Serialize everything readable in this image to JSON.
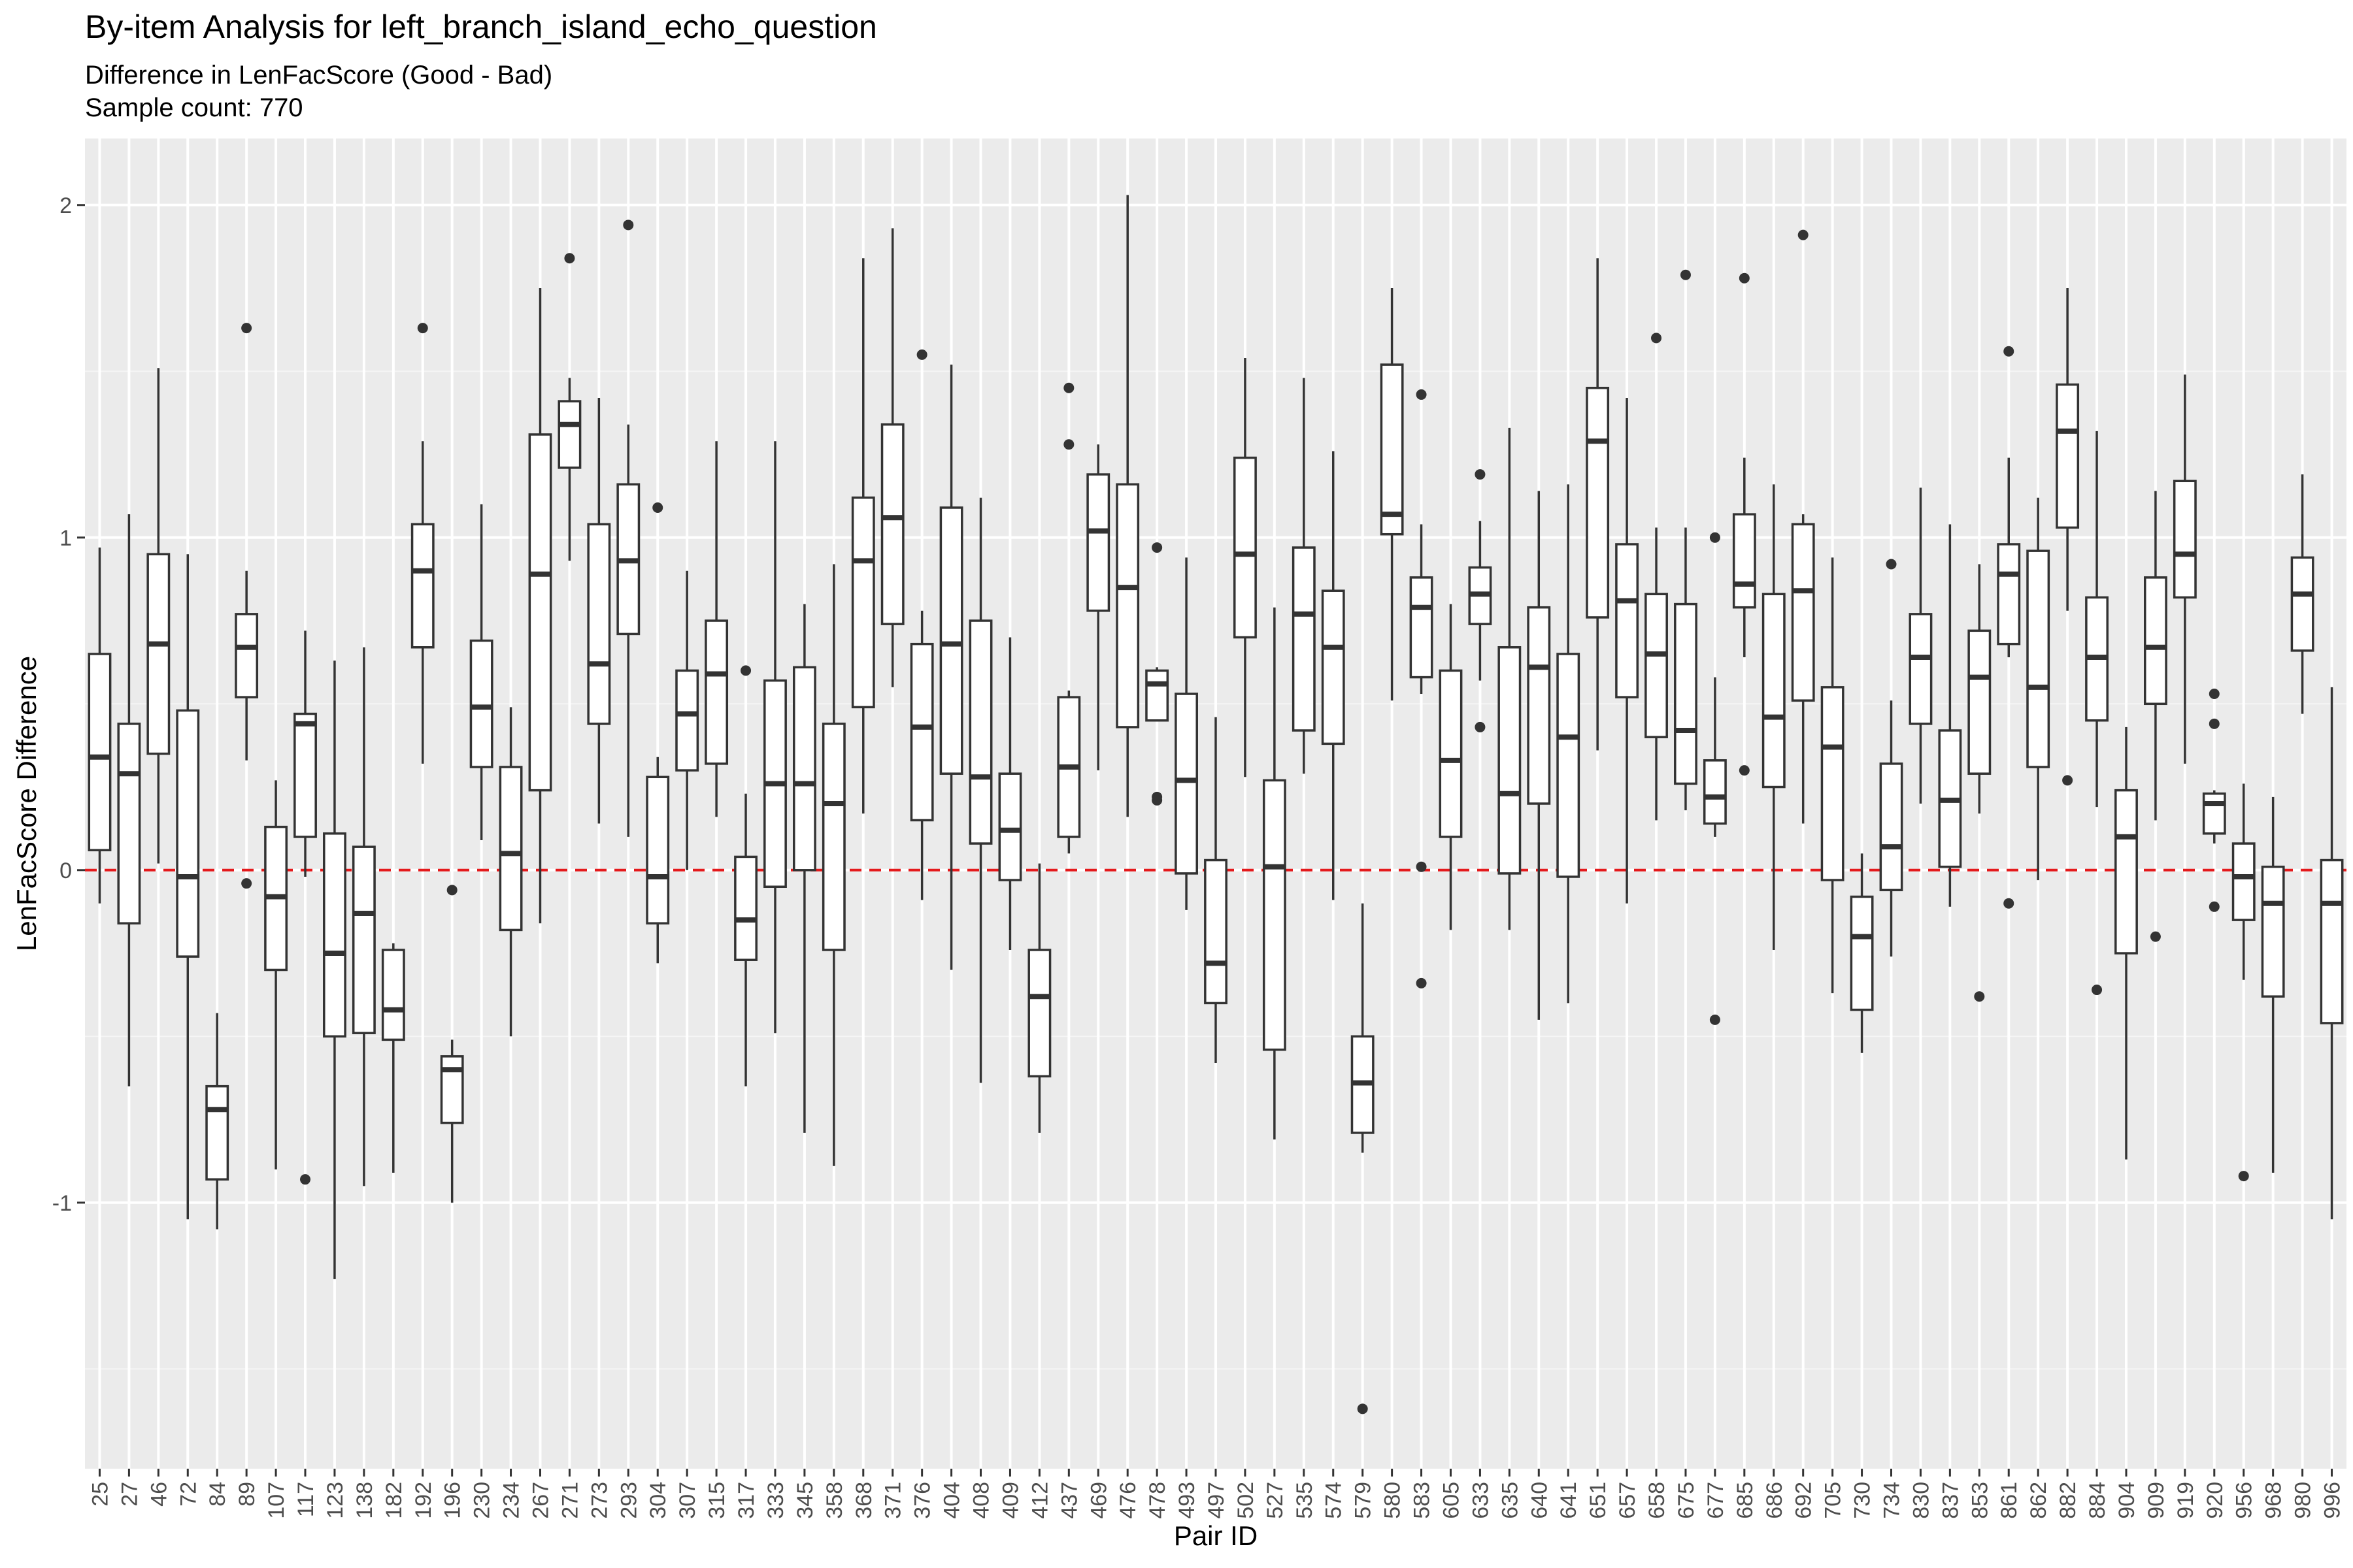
{
  "chart_data": {
    "type": "box",
    "title": "By-item Analysis for left_branch_island_echo_question",
    "subtitle": "Difference in LenFacScore (Good - Bad)",
    "caption_line": "Sample count: 770",
    "xlabel": "Pair ID",
    "ylabel": "LenFacScore Difference",
    "ylim": [
      -1.8,
      2.2
    ],
    "yticks": [
      -1,
      0,
      1,
      2
    ],
    "reference_line": {
      "y": 0,
      "style": "dashed",
      "color": "#e41a1c"
    },
    "grid": true,
    "colors": {
      "panel": "#ebebeb",
      "grid_major": "#ffffff",
      "grid_minor": "#f5f5f5",
      "box_line": "#333333",
      "box_fill": "#ffffff"
    },
    "boxes": [
      {
        "id": "25",
        "whisker_low": -0.1,
        "q1": 0.06,
        "median": 0.34,
        "q3": 0.65,
        "whisker_high": 0.97,
        "outliers": []
      },
      {
        "id": "27",
        "whisker_low": -0.65,
        "q1": -0.16,
        "median": 0.29,
        "q3": 0.44,
        "whisker_high": 1.07,
        "outliers": []
      },
      {
        "id": "46",
        "whisker_low": 0.02,
        "q1": 0.35,
        "median": 0.68,
        "q3": 0.95,
        "whisker_high": 1.51,
        "outliers": []
      },
      {
        "id": "72",
        "whisker_low": -1.05,
        "q1": -0.26,
        "median": -0.02,
        "q3": 0.48,
        "whisker_high": 0.95,
        "outliers": []
      },
      {
        "id": "84",
        "whisker_low": -1.08,
        "q1": -0.93,
        "median": -0.72,
        "q3": -0.65,
        "whisker_high": -0.43,
        "outliers": []
      },
      {
        "id": "89",
        "whisker_low": 0.33,
        "q1": 0.52,
        "median": 0.67,
        "q3": 0.77,
        "whisker_high": 0.9,
        "outliers": [
          1.63,
          -0.04
        ]
      },
      {
        "id": "107",
        "whisker_low": -0.9,
        "q1": -0.3,
        "median": -0.08,
        "q3": 0.13,
        "whisker_high": 0.27,
        "outliers": []
      },
      {
        "id": "117",
        "whisker_low": -0.02,
        "q1": 0.1,
        "median": 0.44,
        "q3": 0.47,
        "whisker_high": 0.72,
        "outliers": [
          -0.93
        ]
      },
      {
        "id": "123",
        "whisker_low": -1.23,
        "q1": -0.5,
        "median": -0.25,
        "q3": 0.11,
        "whisker_high": 0.63,
        "outliers": []
      },
      {
        "id": "138",
        "whisker_low": -0.95,
        "q1": -0.49,
        "median": -0.13,
        "q3": 0.07,
        "whisker_high": 0.67,
        "outliers": []
      },
      {
        "id": "182",
        "whisker_low": -0.91,
        "q1": -0.51,
        "median": -0.42,
        "q3": -0.24,
        "whisker_high": -0.22,
        "outliers": []
      },
      {
        "id": "192",
        "whisker_low": 0.32,
        "q1": 0.67,
        "median": 0.9,
        "q3": 1.04,
        "whisker_high": 1.29,
        "outliers": [
          1.63
        ]
      },
      {
        "id": "196",
        "whisker_low": -1.0,
        "q1": -0.76,
        "median": -0.6,
        "q3": -0.56,
        "whisker_high": -0.51,
        "outliers": [
          -0.06
        ]
      },
      {
        "id": "230",
        "whisker_low": 0.09,
        "q1": 0.31,
        "median": 0.49,
        "q3": 0.69,
        "whisker_high": 1.1,
        "outliers": []
      },
      {
        "id": "234",
        "whisker_low": -0.5,
        "q1": -0.18,
        "median": 0.05,
        "q3": 0.31,
        "whisker_high": 0.49,
        "outliers": []
      },
      {
        "id": "267",
        "whisker_low": -0.16,
        "q1": 0.24,
        "median": 0.89,
        "q3": 1.31,
        "whisker_high": 1.75,
        "outliers": []
      },
      {
        "id": "271",
        "whisker_low": 0.93,
        "q1": 1.21,
        "median": 1.34,
        "q3": 1.41,
        "whisker_high": 1.48,
        "outliers": [
          1.84
        ]
      },
      {
        "id": "273",
        "whisker_low": 0.14,
        "q1": 0.44,
        "median": 0.62,
        "q3": 1.04,
        "whisker_high": 1.42,
        "outliers": []
      },
      {
        "id": "293",
        "whisker_low": 0.1,
        "q1": 0.71,
        "median": 0.93,
        "q3": 1.16,
        "whisker_high": 1.34,
        "outliers": [
          1.94
        ]
      },
      {
        "id": "304",
        "whisker_low": -0.28,
        "q1": -0.16,
        "median": -0.02,
        "q3": 0.28,
        "whisker_high": 0.34,
        "outliers": [
          1.09
        ]
      },
      {
        "id": "307",
        "whisker_low": 0.0,
        "q1": 0.3,
        "median": 0.47,
        "q3": 0.6,
        "whisker_high": 0.9,
        "outliers": []
      },
      {
        "id": "315",
        "whisker_low": 0.16,
        "q1": 0.32,
        "median": 0.59,
        "q3": 0.75,
        "whisker_high": 1.29,
        "outliers": []
      },
      {
        "id": "317",
        "whisker_low": -0.65,
        "q1": -0.27,
        "median": -0.15,
        "q3": 0.04,
        "whisker_high": 0.23,
        "outliers": [
          0.6
        ]
      },
      {
        "id": "333",
        "whisker_low": -0.49,
        "q1": -0.05,
        "median": 0.26,
        "q3": 0.57,
        "whisker_high": 1.29,
        "outliers": []
      },
      {
        "id": "345",
        "whisker_low": -0.79,
        "q1": 0.0,
        "median": 0.26,
        "q3": 0.61,
        "whisker_high": 0.8,
        "outliers": []
      },
      {
        "id": "358",
        "whisker_low": -0.89,
        "q1": -0.24,
        "median": 0.2,
        "q3": 0.44,
        "whisker_high": 0.92,
        "outliers": []
      },
      {
        "id": "368",
        "whisker_low": 0.17,
        "q1": 0.49,
        "median": 0.93,
        "q3": 1.12,
        "whisker_high": 1.84,
        "outliers": []
      },
      {
        "id": "371",
        "whisker_low": 0.55,
        "q1": 0.74,
        "median": 1.06,
        "q3": 1.34,
        "whisker_high": 1.93,
        "outliers": []
      },
      {
        "id": "376",
        "whisker_low": -0.09,
        "q1": 0.15,
        "median": 0.43,
        "q3": 0.68,
        "whisker_high": 0.78,
        "outliers": [
          1.55
        ]
      },
      {
        "id": "404",
        "whisker_low": -0.3,
        "q1": 0.29,
        "median": 0.68,
        "q3": 1.09,
        "whisker_high": 1.52,
        "outliers": []
      },
      {
        "id": "408",
        "whisker_low": -0.64,
        "q1": 0.08,
        "median": 0.28,
        "q3": 0.75,
        "whisker_high": 1.12,
        "outliers": []
      },
      {
        "id": "409",
        "whisker_low": -0.24,
        "q1": -0.03,
        "median": 0.12,
        "q3": 0.29,
        "whisker_high": 0.7,
        "outliers": []
      },
      {
        "id": "412",
        "whisker_low": -0.79,
        "q1": -0.62,
        "median": -0.38,
        "q3": -0.24,
        "whisker_high": 0.02,
        "outliers": []
      },
      {
        "id": "437",
        "whisker_low": 0.05,
        "q1": 0.1,
        "median": 0.31,
        "q3": 0.52,
        "whisker_high": 0.54,
        "outliers": [
          1.45,
          1.28
        ]
      },
      {
        "id": "469",
        "whisker_low": 0.3,
        "q1": 0.78,
        "median": 1.02,
        "q3": 1.19,
        "whisker_high": 1.28,
        "outliers": []
      },
      {
        "id": "476",
        "whisker_low": 0.16,
        "q1": 0.43,
        "median": 0.85,
        "q3": 1.16,
        "whisker_high": 2.03,
        "outliers": []
      },
      {
        "id": "478",
        "whisker_low": 0.45,
        "q1": 0.45,
        "median": 0.56,
        "q3": 0.6,
        "whisker_high": 0.61,
        "outliers": [
          0.97,
          0.22,
          0.21
        ]
      },
      {
        "id": "493",
        "whisker_low": -0.12,
        "q1": -0.01,
        "median": 0.27,
        "q3": 0.53,
        "whisker_high": 0.94,
        "outliers": []
      },
      {
        "id": "497",
        "whisker_low": -0.58,
        "q1": -0.4,
        "median": -0.28,
        "q3": 0.03,
        "whisker_high": 0.46,
        "outliers": []
      },
      {
        "id": "502",
        "whisker_low": 0.28,
        "q1": 0.7,
        "median": 0.95,
        "q3": 1.24,
        "whisker_high": 1.54,
        "outliers": []
      },
      {
        "id": "527",
        "whisker_low": -0.81,
        "q1": -0.54,
        "median": 0.01,
        "q3": 0.27,
        "whisker_high": 0.79,
        "outliers": []
      },
      {
        "id": "535",
        "whisker_low": 0.29,
        "q1": 0.42,
        "median": 0.77,
        "q3": 0.97,
        "whisker_high": 1.48,
        "outliers": []
      },
      {
        "id": "574",
        "whisker_low": -0.09,
        "q1": 0.38,
        "median": 0.67,
        "q3": 0.84,
        "whisker_high": 1.26,
        "outliers": []
      },
      {
        "id": "579",
        "whisker_low": -0.85,
        "q1": -0.79,
        "median": -0.64,
        "q3": -0.5,
        "whisker_high": -0.1,
        "outliers": [
          -1.62
        ]
      },
      {
        "id": "580",
        "whisker_low": 0.51,
        "q1": 1.01,
        "median": 1.07,
        "q3": 1.52,
        "whisker_high": 1.75,
        "outliers": []
      },
      {
        "id": "583",
        "whisker_low": 0.53,
        "q1": 0.58,
        "median": 0.79,
        "q3": 0.88,
        "whisker_high": 1.04,
        "outliers": [
          1.43,
          0.01,
          -0.34
        ]
      },
      {
        "id": "605",
        "whisker_low": -0.18,
        "q1": 0.1,
        "median": 0.33,
        "q3": 0.6,
        "whisker_high": 0.8,
        "outliers": []
      },
      {
        "id": "633",
        "whisker_low": 0.57,
        "q1": 0.74,
        "median": 0.83,
        "q3": 0.91,
        "whisker_high": 1.05,
        "outliers": [
          1.19,
          0.43
        ]
      },
      {
        "id": "635",
        "whisker_low": -0.18,
        "q1": -0.01,
        "median": 0.23,
        "q3": 0.67,
        "whisker_high": 1.33,
        "outliers": []
      },
      {
        "id": "640",
        "whisker_low": -0.45,
        "q1": 0.2,
        "median": 0.61,
        "q3": 0.79,
        "whisker_high": 1.14,
        "outliers": []
      },
      {
        "id": "641",
        "whisker_low": -0.4,
        "q1": -0.02,
        "median": 0.4,
        "q3": 0.65,
        "whisker_high": 1.16,
        "outliers": []
      },
      {
        "id": "651",
        "whisker_low": 0.36,
        "q1": 0.76,
        "median": 1.29,
        "q3": 1.45,
        "whisker_high": 1.84,
        "outliers": []
      },
      {
        "id": "657",
        "whisker_low": -0.1,
        "q1": 0.52,
        "median": 0.81,
        "q3": 0.98,
        "whisker_high": 1.42,
        "outliers": []
      },
      {
        "id": "658",
        "whisker_low": 0.15,
        "q1": 0.4,
        "median": 0.65,
        "q3": 0.83,
        "whisker_high": 1.03,
        "outliers": [
          1.6
        ]
      },
      {
        "id": "675",
        "whisker_low": 0.18,
        "q1": 0.26,
        "median": 0.42,
        "q3": 0.8,
        "whisker_high": 1.03,
        "outliers": [
          1.79
        ]
      },
      {
        "id": "677",
        "whisker_low": 0.1,
        "q1": 0.14,
        "median": 0.22,
        "q3": 0.33,
        "whisker_high": 0.58,
        "outliers": [
          1.0,
          -0.45
        ]
      },
      {
        "id": "685",
        "whisker_low": 0.64,
        "q1": 0.79,
        "median": 0.86,
        "q3": 1.07,
        "whisker_high": 1.24,
        "outliers": [
          1.78,
          0.3
        ]
      },
      {
        "id": "686",
        "whisker_low": -0.24,
        "q1": 0.25,
        "median": 0.46,
        "q3": 0.83,
        "whisker_high": 1.16,
        "outliers": []
      },
      {
        "id": "692",
        "whisker_low": 0.14,
        "q1": 0.51,
        "median": 0.84,
        "q3": 1.04,
        "whisker_high": 1.07,
        "outliers": [
          1.91
        ]
      },
      {
        "id": "705",
        "whisker_low": -0.37,
        "q1": -0.03,
        "median": 0.37,
        "q3": 0.55,
        "whisker_high": 0.94,
        "outliers": []
      },
      {
        "id": "730",
        "whisker_low": -0.55,
        "q1": -0.42,
        "median": -0.2,
        "q3": -0.08,
        "whisker_high": 0.05,
        "outliers": []
      },
      {
        "id": "734",
        "whisker_low": -0.26,
        "q1": -0.06,
        "median": 0.07,
        "q3": 0.32,
        "whisker_high": 0.51,
        "outliers": [
          0.92
        ]
      },
      {
        "id": "830",
        "whisker_low": 0.2,
        "q1": 0.44,
        "median": 0.64,
        "q3": 0.77,
        "whisker_high": 1.15,
        "outliers": []
      },
      {
        "id": "837",
        "whisker_low": -0.11,
        "q1": 0.01,
        "median": 0.21,
        "q3": 0.42,
        "whisker_high": 1.04,
        "outliers": []
      },
      {
        "id": "853",
        "whisker_low": 0.17,
        "q1": 0.29,
        "median": 0.58,
        "q3": 0.72,
        "whisker_high": 0.92,
        "outliers": [
          -0.38
        ]
      },
      {
        "id": "861",
        "whisker_low": 0.64,
        "q1": 0.68,
        "median": 0.89,
        "q3": 0.98,
        "whisker_high": 1.24,
        "outliers": [
          1.56,
          -0.1
        ]
      },
      {
        "id": "862",
        "whisker_low": -0.03,
        "q1": 0.31,
        "median": 0.55,
        "q3": 0.96,
        "whisker_high": 1.12,
        "outliers": []
      },
      {
        "id": "882",
        "whisker_low": 0.78,
        "q1": 1.03,
        "median": 1.32,
        "q3": 1.46,
        "whisker_high": 1.75,
        "outliers": [
          0.27
        ]
      },
      {
        "id": "884",
        "whisker_low": 0.19,
        "q1": 0.45,
        "median": 0.64,
        "q3": 0.82,
        "whisker_high": 1.32,
        "outliers": [
          -0.36
        ]
      },
      {
        "id": "904",
        "whisker_low": -0.87,
        "q1": -0.25,
        "median": 0.1,
        "q3": 0.24,
        "whisker_high": 0.43,
        "outliers": []
      },
      {
        "id": "909",
        "whisker_low": 0.15,
        "q1": 0.5,
        "median": 0.67,
        "q3": 0.88,
        "whisker_high": 1.14,
        "outliers": [
          -0.2
        ]
      },
      {
        "id": "919",
        "whisker_low": 0.32,
        "q1": 0.82,
        "median": 0.95,
        "q3": 1.17,
        "whisker_high": 1.49,
        "outliers": []
      },
      {
        "id": "920",
        "whisker_low": 0.08,
        "q1": 0.11,
        "median": 0.2,
        "q3": 0.23,
        "whisker_high": 0.24,
        "outliers": [
          0.53,
          0.44,
          -0.11
        ]
      },
      {
        "id": "956",
        "whisker_low": -0.33,
        "q1": -0.15,
        "median": -0.02,
        "q3": 0.08,
        "whisker_high": 0.26,
        "outliers": [
          -0.92
        ]
      },
      {
        "id": "968",
        "whisker_low": -0.91,
        "q1": -0.38,
        "median": -0.1,
        "q3": 0.01,
        "whisker_high": 0.22,
        "outliers": []
      },
      {
        "id": "980",
        "whisker_low": 0.47,
        "q1": 0.66,
        "median": 0.83,
        "q3": 0.94,
        "whisker_high": 1.19,
        "outliers": []
      },
      {
        "id": "996",
        "whisker_low": -1.05,
        "q1": -0.46,
        "median": -0.1,
        "q3": 0.03,
        "whisker_high": 0.55,
        "outliers": []
      }
    ]
  }
}
